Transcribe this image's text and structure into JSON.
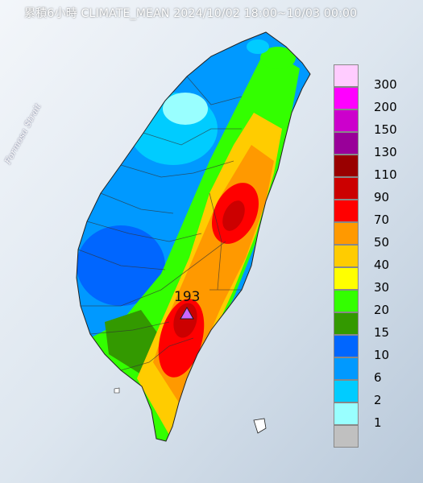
{
  "title": "累積6小時 CLIMATE_MEAN 2024/10/02 18:00~10/03 00:00",
  "strait_label": "Formosa Strait",
  "max_value": {
    "label": "193",
    "marker": "triangle-marker"
  },
  "legend": [
    {
      "label": "300",
      "color": "#ffccff"
    },
    {
      "label": "200",
      "color": "#ff00ff"
    },
    {
      "label": "150",
      "color": "#cc00cc"
    },
    {
      "label": "130",
      "color": "#990099"
    },
    {
      "label": "110",
      "color": "#990000"
    },
    {
      "label": "90",
      "color": "#cc0000"
    },
    {
      "label": "70",
      "color": "#ff0000"
    },
    {
      "label": "50",
      "color": "#ff9900"
    },
    {
      "label": "40",
      "color": "#ffcc00"
    },
    {
      "label": "30",
      "color": "#ffff00"
    },
    {
      "label": "20",
      "color": "#33ff00"
    },
    {
      "label": "15",
      "color": "#339900"
    },
    {
      "label": "10",
      "color": "#0066ff"
    },
    {
      "label": "6",
      "color": "#0099ff"
    },
    {
      "label": "2",
      "color": "#00ccff"
    },
    {
      "label": "1",
      "color": "#99ffff"
    },
    {
      "label": "",
      "color": "#c0c0c0"
    }
  ],
  "colors": {
    "sea": "#e9eef4",
    "land_outline": "#333333",
    "marker": "#cc66ff"
  }
}
